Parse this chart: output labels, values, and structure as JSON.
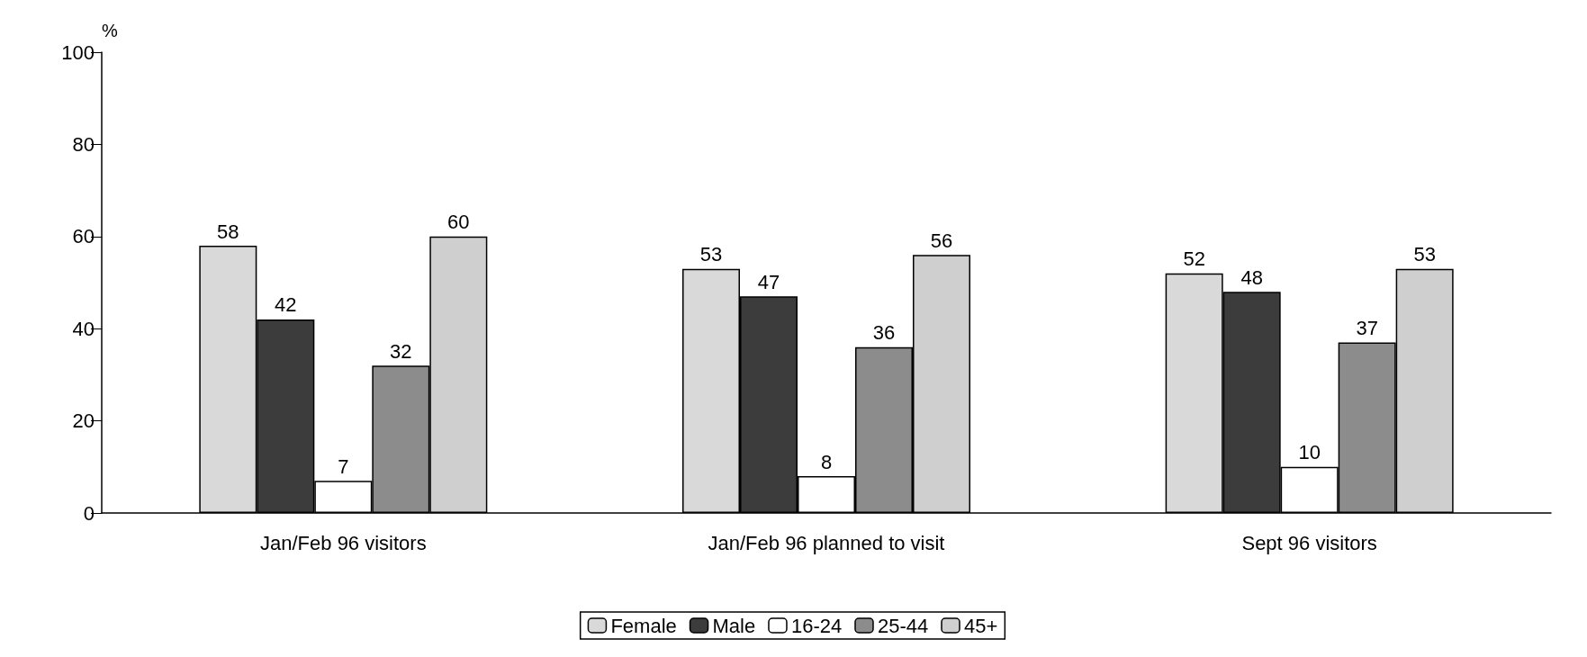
{
  "chart_data": {
    "type": "bar",
    "ylabel": "%",
    "categories": [
      "Jan/Feb 96 visitors",
      "Jan/Feb 96 planned to visit",
      "Sept 96 visitors"
    ],
    "series": [
      {
        "name": "Female",
        "color": "#d9d9d9",
        "values": [
          58,
          53,
          52
        ]
      },
      {
        "name": "Male",
        "color": "#3c3c3c",
        "values": [
          42,
          47,
          48
        ]
      },
      {
        "name": "16-24",
        "color": "#ffffff",
        "values": [
          7,
          8,
          10
        ]
      },
      {
        "name": "25-44",
        "color": "#8c8c8c",
        "values": [
          32,
          36,
          37
        ]
      },
      {
        "name": "45+",
        "color": "#cfcfcf",
        "values": [
          60,
          56,
          53
        ]
      }
    ],
    "ylim": [
      0,
      100
    ],
    "yticks": [
      0,
      20,
      40,
      60,
      80,
      100
    ],
    "grid": false,
    "legend": "bottom",
    "data_labels": true
  }
}
